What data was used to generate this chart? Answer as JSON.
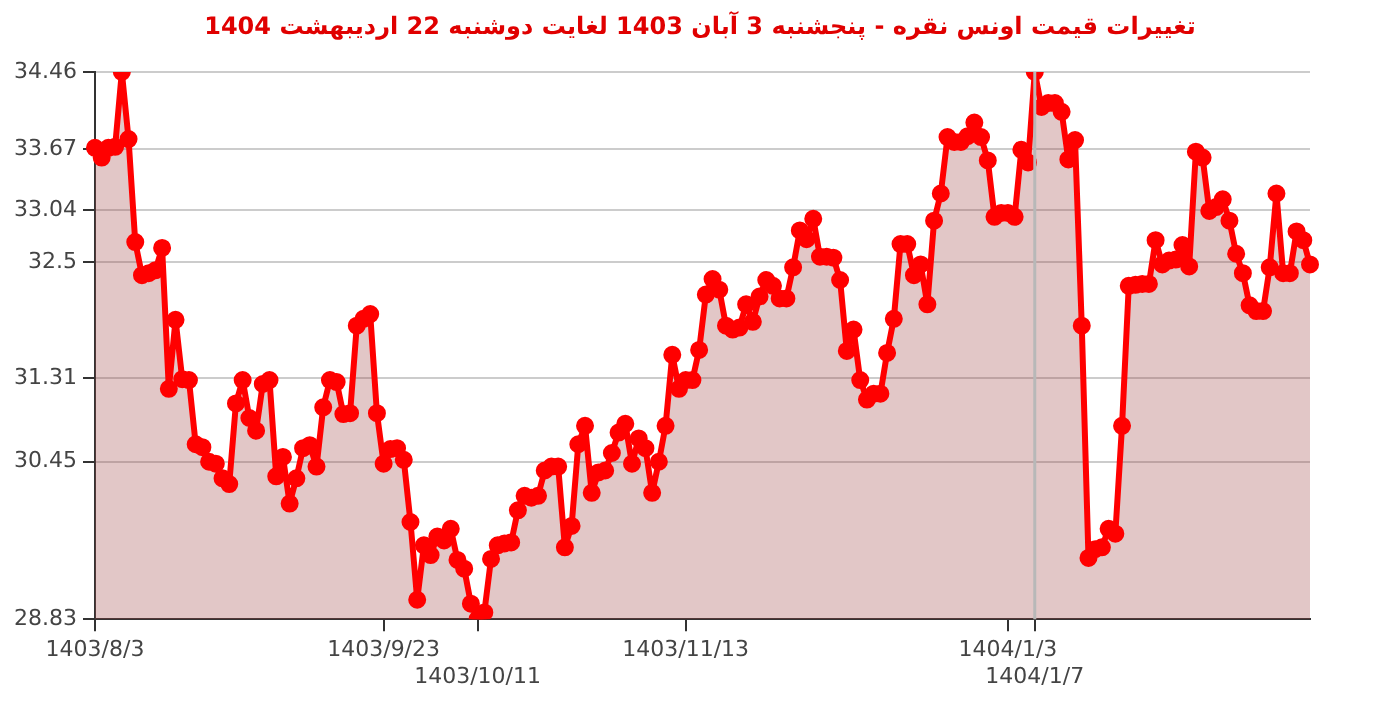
{
  "chart_data": {
    "type": "area",
    "title": "تغییرات قیمت اونس نقره - پنجشنبه  3 آبان 1403 لغایت  دوشنبه  22 اردیبهشت 1404",
    "categories": [
      "1403/8/3",
      null,
      null,
      null,
      null,
      null,
      null,
      null,
      null,
      null,
      null,
      null,
      null,
      null,
      null,
      null,
      null,
      null,
      null,
      null,
      null,
      null,
      null,
      null,
      null,
      null,
      null,
      null,
      null,
      null,
      null,
      null,
      null,
      null,
      null,
      null,
      null,
      null,
      null,
      null,
      null,
      null,
      null,
      "1403/9/23",
      null,
      null,
      null,
      null,
      null,
      null,
      null,
      null,
      null,
      null,
      null,
      null,
      null,
      "1403/10/11",
      null,
      null,
      null,
      null,
      null,
      null,
      null,
      null,
      null,
      null,
      null,
      null,
      null,
      null,
      null,
      null,
      null,
      null,
      null,
      null,
      null,
      null,
      null,
      null,
      null,
      null,
      null,
      null,
      null,
      null,
      "1403/11/13",
      null,
      null,
      null,
      null,
      null,
      null,
      null,
      null,
      null,
      null,
      null,
      null,
      null,
      null,
      null,
      null,
      null,
      null,
      null,
      null,
      null,
      null,
      null,
      null,
      null,
      null,
      null,
      null,
      null,
      null,
      null,
      null,
      null,
      null,
      null,
      null,
      null,
      null,
      null,
      null,
      null,
      null,
      null,
      null,
      null,
      null,
      null,
      "1404/1/3",
      null,
      null,
      null,
      "1404/1/7",
      null,
      null,
      null,
      null,
      null,
      null,
      null,
      null,
      null,
      null,
      null,
      null,
      null,
      null,
      null,
      null,
      null,
      null,
      null,
      null,
      null,
      null,
      null,
      null,
      null,
      null,
      null,
      null,
      null,
      null,
      null,
      null,
      null,
      null,
      null,
      null,
      null,
      null,
      null,
      null,
      null
    ],
    "series": [
      {
        "color": "#ff0000",
        "values": [
          33.68,
          33.58,
          33.68,
          33.69,
          34.46,
          33.77,
          32.71,
          32.37,
          32.39,
          32.42,
          32.65,
          31.2,
          31.91,
          31.3,
          31.29,
          30.63,
          30.6,
          30.45,
          30.43,
          30.28,
          30.22,
          31.05,
          31.29,
          30.9,
          30.77,
          31.25,
          31.29,
          30.3,
          30.5,
          30.02,
          30.28,
          30.59,
          30.62,
          30.4,
          31.01,
          31.29,
          31.27,
          30.94,
          30.95,
          31.85,
          31.92,
          31.97,
          30.95,
          30.43,
          30.58,
          30.59,
          30.47,
          29.83,
          29.03,
          29.59,
          29.49,
          29.68,
          29.64,
          29.76,
          29.44,
          29.35,
          28.99,
          28.83,
          28.9,
          29.45,
          29.59,
          29.61,
          29.62,
          29.95,
          30.1,
          30.08,
          30.1,
          30.36,
          30.4,
          30.4,
          29.57,
          29.79,
          30.63,
          30.82,
          30.13,
          30.34,
          30.36,
          30.54,
          30.75,
          30.84,
          30.43,
          30.69,
          30.59,
          30.13,
          30.45,
          30.82,
          31.55,
          31.2,
          31.29,
          31.29,
          31.6,
          32.17,
          32.33,
          32.22,
          31.85,
          31.81,
          31.83,
          32.07,
          31.89,
          32.15,
          32.32,
          32.26,
          32.13,
          32.13,
          32.45,
          32.83,
          32.74,
          32.95,
          32.56,
          32.56,
          32.55,
          32.32,
          31.59,
          31.81,
          31.29,
          31.09,
          31.15,
          31.15,
          31.57,
          31.92,
          32.69,
          32.69,
          32.37,
          32.48,
          32.07,
          32.93,
          33.21,
          33.79,
          33.74,
          33.74,
          33.8,
          33.94,
          33.79,
          33.55,
          32.97,
          33.01,
          33.01,
          32.97,
          33.66,
          33.53,
          34.46,
          34.1,
          34.14,
          34.14,
          34.05,
          33.56,
          33.76,
          31.85,
          29.46,
          29.55,
          29.57,
          29.76,
          29.71,
          30.82,
          32.26,
          32.27,
          32.28,
          32.28,
          32.73,
          32.48,
          32.52,
          32.53,
          32.68,
          32.46,
          33.64,
          33.58,
          33.03,
          33.07,
          33.15,
          32.93,
          32.59,
          32.39,
          32.06,
          32.0,
          32.0,
          32.45,
          33.21,
          32.39,
          32.39,
          32.82,
          32.73,
          32.48
        ]
      }
    ],
    "ylim": [
      28.83,
      34.46
    ],
    "yticks": [
      28.83,
      30.45,
      31.31,
      32.5,
      33.04,
      33.67,
      34.46
    ],
    "ref_lines": [
      {
        "axis": "x",
        "value": "1404/1/7",
        "color": "#b8b8b8"
      }
    ],
    "grid": "y",
    "legend": false,
    "marker": "circle",
    "line_style": "solid"
  }
}
